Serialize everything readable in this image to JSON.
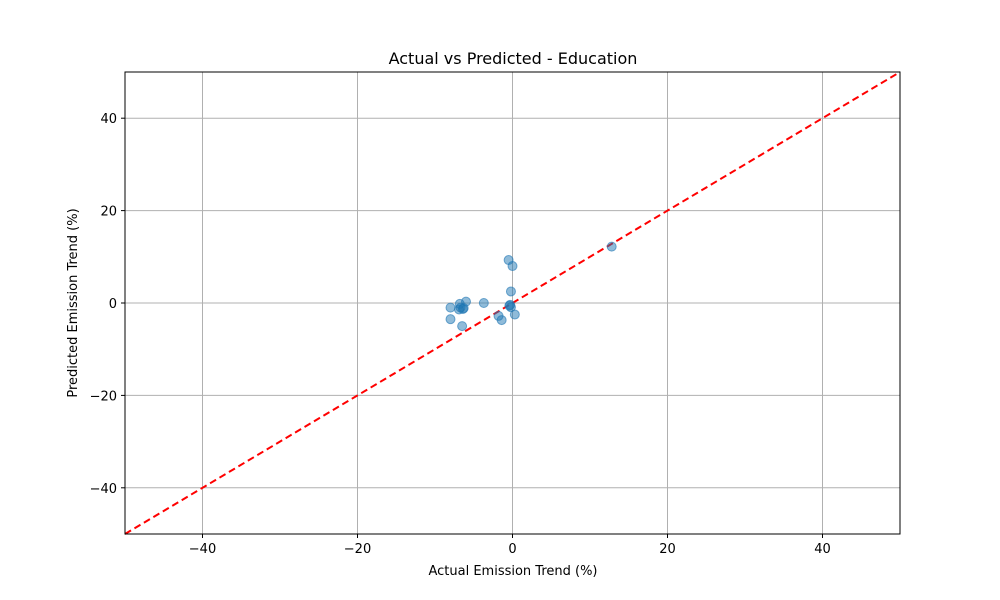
{
  "chart_data": {
    "type": "scatter",
    "title": "Actual vs Predicted - Education",
    "xlabel": "Actual Emission Trend (%)",
    "ylabel": "Predicted Emission Trend (%)",
    "xlim": [
      -50,
      50
    ],
    "ylim": [
      -50,
      50
    ],
    "x_ticks": [
      -40,
      -20,
      0,
      20,
      40
    ],
    "y_ticks": [
      -40,
      -20,
      0,
      20,
      40
    ],
    "x_tick_labels": [
      "−40",
      "−20",
      "0",
      "20",
      "40"
    ],
    "y_tick_labels": [
      "−40",
      "−20",
      "0",
      "20",
      "40"
    ],
    "grid": true,
    "reference_line": {
      "x": [
        -50,
        50
      ],
      "y": [
        -50,
        50
      ],
      "style": "dashed",
      "color": "#ff0000"
    },
    "point_color": "#1f77b4",
    "points": [
      {
        "x": -0.5,
        "y": 9.3
      },
      {
        "x": 0.0,
        "y": 8.0
      },
      {
        "x": 12.8,
        "y": 12.2
      },
      {
        "x": -0.2,
        "y": 2.5
      },
      {
        "x": -0.3,
        "y": -0.4
      },
      {
        "x": -0.4,
        "y": -0.6
      },
      {
        "x": -0.2,
        "y": -0.9
      },
      {
        "x": 0.3,
        "y": -2.5
      },
      {
        "x": -3.7,
        "y": 0.0
      },
      {
        "x": -6.0,
        "y": 0.3
      },
      {
        "x": -6.8,
        "y": -0.2
      },
      {
        "x": -6.7,
        "y": -1.0
      },
      {
        "x": -6.3,
        "y": -1.1
      },
      {
        "x": -6.4,
        "y": -1.3
      },
      {
        "x": -6.9,
        "y": -1.4
      },
      {
        "x": -8.0,
        "y": -1.0
      },
      {
        "x": -8.0,
        "y": -3.5
      },
      {
        "x": -6.5,
        "y": -5.0
      },
      {
        "x": -1.8,
        "y": -2.8
      },
      {
        "x": -1.4,
        "y": -3.7
      }
    ]
  }
}
